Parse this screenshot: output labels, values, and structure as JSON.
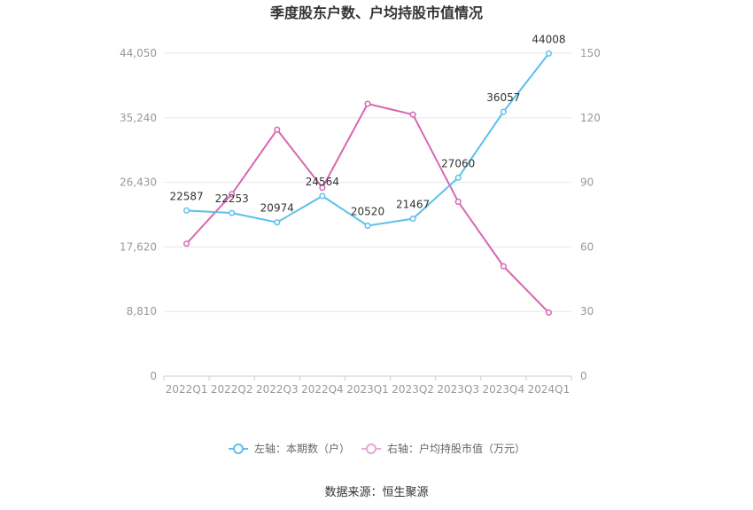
{
  "chart_data": {
    "type": "line",
    "title": "季度股东户数、户均持股市值情况",
    "categories": [
      "2022Q1",
      "2022Q2",
      "2022Q3",
      "2022Q4",
      "2023Q1",
      "2023Q2",
      "2023Q3",
      "2023Q4",
      "2024Q1"
    ],
    "left_axis": {
      "ticks": [
        "0",
        "8,810",
        "17,620",
        "26,430",
        "35,240",
        "44,050"
      ],
      "ylim": [
        0,
        44050
      ]
    },
    "right_axis": {
      "ticks": [
        "0",
        "30",
        "60",
        "90",
        "120",
        "150"
      ],
      "ylim": [
        0,
        150
      ]
    },
    "series": [
      {
        "name": "左轴：本期数（户）",
        "axis": "left",
        "color": "#5bc0eb",
        "values": [
          22587,
          22253,
          20974,
          24564,
          20520,
          21467,
          27060,
          36057,
          44008
        ],
        "labels": [
          "22587",
          "22253",
          "20974",
          "24564",
          "20520",
          "21467",
          "27060",
          "36057",
          "44008"
        ]
      },
      {
        "name": "右轴：户均持股市值（万元）",
        "axis": "right",
        "color": "#d966b0",
        "values": [
          61.5,
          84.5,
          114.5,
          87.5,
          126.5,
          121.5,
          81.0,
          51.0,
          29.5
        ]
      }
    ],
    "grid": true,
    "legend": "bottom-center"
  },
  "source": "数据来源：恒生聚源"
}
